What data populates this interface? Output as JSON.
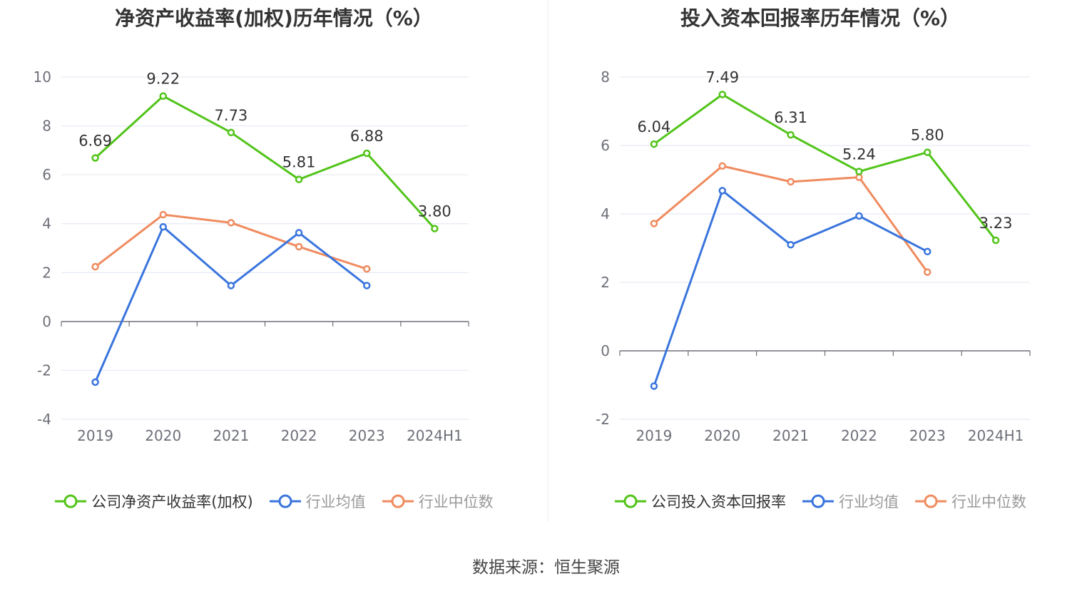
{
  "chart_data": [
    {
      "type": "line",
      "title": "净资产收益率(加权)历年情况（%）",
      "categories": [
        "2019",
        "2020",
        "2021",
        "2022",
        "2023",
        "2024H1"
      ],
      "ylim": [
        -4,
        10
      ],
      "yticks": [
        -4,
        -2,
        0,
        2,
        4,
        6,
        8,
        10
      ],
      "grid": true,
      "legend_position": "bottom",
      "series": [
        {
          "name": "公司净资产收益率(加权)",
          "color": "#52c41a",
          "values": [
            6.69,
            9.22,
            7.73,
            5.81,
            6.88,
            3.8
          ],
          "labels": [
            "6.69",
            "9.22",
            "7.73",
            "5.81",
            "6.88",
            "3.80"
          ]
        },
        {
          "name": "行业均值",
          "color": "#3a75dd",
          "values": [
            -2.48,
            3.87,
            1.47,
            3.63,
            1.47,
            null
          ]
        },
        {
          "name": "行业中位数",
          "color": "#f08b5f",
          "values": [
            2.24,
            4.37,
            4.04,
            3.06,
            2.15,
            null
          ]
        }
      ]
    },
    {
      "type": "line",
      "title": "投入资本回报率历年情况（%）",
      "categories": [
        "2019",
        "2020",
        "2021",
        "2022",
        "2023",
        "2024H1"
      ],
      "ylim": [
        -2,
        8
      ],
      "yticks": [
        -2,
        0,
        2,
        4,
        6,
        8
      ],
      "grid": true,
      "legend_position": "bottom",
      "series": [
        {
          "name": "公司投入资本回报率",
          "color": "#52c41a",
          "values": [
            6.04,
            7.49,
            6.31,
            5.24,
            5.8,
            3.23
          ],
          "labels": [
            "6.04",
            "7.49",
            "6.31",
            "5.24",
            "5.80",
            "3.23"
          ]
        },
        {
          "name": "行业均值",
          "color": "#3a75dd",
          "values": [
            -1.03,
            4.68,
            3.1,
            3.94,
            2.9,
            null
          ]
        },
        {
          "name": "行业中位数",
          "color": "#f08b5f",
          "values": [
            3.72,
            5.4,
            4.94,
            5.07,
            2.3,
            null
          ]
        }
      ]
    }
  ],
  "source": "数据来源：恒生聚源"
}
